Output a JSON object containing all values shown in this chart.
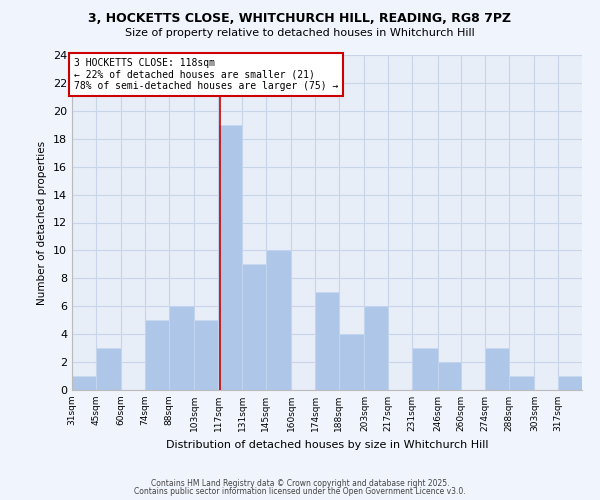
{
  "title1": "3, HOCKETTS CLOSE, WHITCHURCH HILL, READING, RG8 7PZ",
  "title2": "Size of property relative to detached houses in Whitchurch Hill",
  "xlabel": "Distribution of detached houses by size in Whitchurch Hill",
  "ylabel": "Number of detached properties",
  "bin_labels": [
    "31sqm",
    "45sqm",
    "60sqm",
    "74sqm",
    "88sqm",
    "103sqm",
    "117sqm",
    "131sqm",
    "145sqm",
    "160sqm",
    "174sqm",
    "188sqm",
    "203sqm",
    "217sqm",
    "231sqm",
    "246sqm",
    "260sqm",
    "274sqm",
    "288sqm",
    "303sqm",
    "317sqm"
  ],
  "bin_edges": [
    31,
    45,
    60,
    74,
    88,
    103,
    117,
    131,
    145,
    160,
    174,
    188,
    203,
    217,
    231,
    246,
    260,
    274,
    288,
    303,
    317,
    331
  ],
  "counts": [
    1,
    3,
    0,
    5,
    6,
    5,
    19,
    9,
    10,
    0,
    7,
    4,
    6,
    0,
    3,
    2,
    0,
    3,
    1,
    0,
    1
  ],
  "bar_color": "#aec6e8",
  "bar_edge_color": "#c8d8f0",
  "grid_color": "#c8d4e8",
  "bg_color": "#e8eef8",
  "fig_color": "#f0f4fc",
  "vline_x": 118,
  "vline_color": "#cc0000",
  "annotation_text": "3 HOCKETTS CLOSE: 118sqm\n← 22% of detached houses are smaller (21)\n78% of semi-detached houses are larger (75) →",
  "annotation_box_color": "#ffffff",
  "annotation_box_edge": "#cc0000",
  "ylim": [
    0,
    24
  ],
  "yticks": [
    0,
    2,
    4,
    6,
    8,
    10,
    12,
    14,
    16,
    18,
    20,
    22,
    24
  ],
  "footer1": "Contains HM Land Registry data © Crown copyright and database right 2025.",
  "footer2": "Contains public sector information licensed under the Open Government Licence v3.0."
}
